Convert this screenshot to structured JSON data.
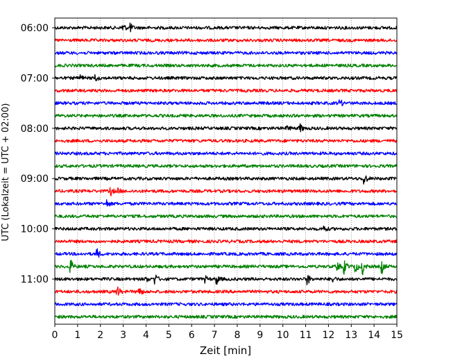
{
  "chart_data": {
    "type": "line",
    "subtype": "helicorder",
    "xlabel": "Zeit  [min]",
    "ylabel": "UTC (Lokalzeit = UTC + 02:00)",
    "xlim": [
      0,
      15
    ],
    "x_ticks": [
      0,
      1,
      2,
      3,
      4,
      5,
      6,
      7,
      8,
      9,
      10,
      11,
      12,
      13,
      14,
      15
    ],
    "x_tick_labels": [
      "0",
      "1",
      "2",
      "3",
      "4",
      "5",
      "6",
      "7",
      "8",
      "9",
      "10",
      "11",
      "12",
      "13",
      "14",
      "15"
    ],
    "y_tick_labels": [
      "06:00",
      "07:00",
      "08:00",
      "09:00",
      "10:00",
      "11:00"
    ],
    "grid": "vertical dotted at each minute",
    "colors": [
      "#000000",
      "#ff0000",
      "#0000ff",
      "#008000"
    ],
    "trace_minutes": 15,
    "traces": [
      {
        "start": "06:00",
        "color": "#000000",
        "events": [
          {
            "x": 3.0,
            "amp": 0.6
          },
          {
            "x": 3.3,
            "amp": 0.7
          }
        ]
      },
      {
        "start": "06:15",
        "color": "#ff0000",
        "events": []
      },
      {
        "start": "06:30",
        "color": "#0000ff",
        "events": []
      },
      {
        "start": "06:45",
        "color": "#008000",
        "events": []
      },
      {
        "start": "07:00",
        "color": "#000000",
        "events": [
          {
            "x": 1.1,
            "amp": 0.6
          },
          {
            "x": 1.8,
            "amp": 0.4
          }
        ]
      },
      {
        "start": "07:15",
        "color": "#ff0000",
        "events": []
      },
      {
        "start": "07:30",
        "color": "#0000ff",
        "events": [
          {
            "x": 12.5,
            "amp": 0.6
          }
        ]
      },
      {
        "start": "07:45",
        "color": "#008000",
        "events": []
      },
      {
        "start": "08:00",
        "color": "#000000",
        "events": [
          {
            "x": 10.2,
            "amp": 0.4
          },
          {
            "x": 10.75,
            "amp": 0.7
          }
        ]
      },
      {
        "start": "08:15",
        "color": "#ff0000",
        "events": []
      },
      {
        "start": "08:30",
        "color": "#0000ff",
        "events": []
      },
      {
        "start": "08:45",
        "color": "#008000",
        "events": []
      },
      {
        "start": "09:00",
        "color": "#000000",
        "events": [
          {
            "x": 13.55,
            "amp": 1.2
          }
        ]
      },
      {
        "start": "09:15",
        "color": "#ff0000",
        "events": [
          {
            "x": 2.45,
            "amp": 0.6
          },
          {
            "x": 2.8,
            "amp": 0.3
          }
        ]
      },
      {
        "start": "09:30",
        "color": "#0000ff",
        "events": [
          {
            "x": 2.3,
            "amp": 0.5
          }
        ]
      },
      {
        "start": "09:45",
        "color": "#008000",
        "events": []
      },
      {
        "start": "10:00",
        "color": "#000000",
        "events": [
          {
            "x": 11.8,
            "amp": 0.5
          }
        ]
      },
      {
        "start": "10:15",
        "color": "#ff0000",
        "events": []
      },
      {
        "start": "10:30",
        "color": "#0000ff",
        "events": [
          {
            "x": 1.85,
            "amp": 0.8
          }
        ]
      },
      {
        "start": "10:45",
        "color": "#008000",
        "events": [
          {
            "x": 0.7,
            "amp": 1.0
          },
          {
            "x": 12.4,
            "amp": 0.6
          },
          {
            "x": 12.7,
            "amp": 0.9
          },
          {
            "x": 13.2,
            "amp": 0.8
          },
          {
            "x": 13.5,
            "amp": 1.0
          },
          {
            "x": 14.35,
            "amp": 0.9
          }
        ]
      },
      {
        "start": "11:00",
        "color": "#000000",
        "events": [
          {
            "x": 4.4,
            "amp": 0.8
          },
          {
            "x": 4.0,
            "amp": 0.4
          },
          {
            "x": 6.6,
            "amp": 0.4
          },
          {
            "x": 7.1,
            "amp": 0.8
          },
          {
            "x": 11.1,
            "amp": 0.7
          },
          {
            "x": 12.2,
            "amp": 0.4
          }
        ]
      },
      {
        "start": "11:15",
        "color": "#ff0000",
        "events": [
          {
            "x": 2.75,
            "amp": 0.8
          },
          {
            "x": 3.7,
            "amp": 0.8
          }
        ]
      },
      {
        "start": "11:30",
        "color": "#0000ff",
        "events": []
      },
      {
        "start": "11:45",
        "color": "#008000",
        "events": []
      }
    ]
  }
}
